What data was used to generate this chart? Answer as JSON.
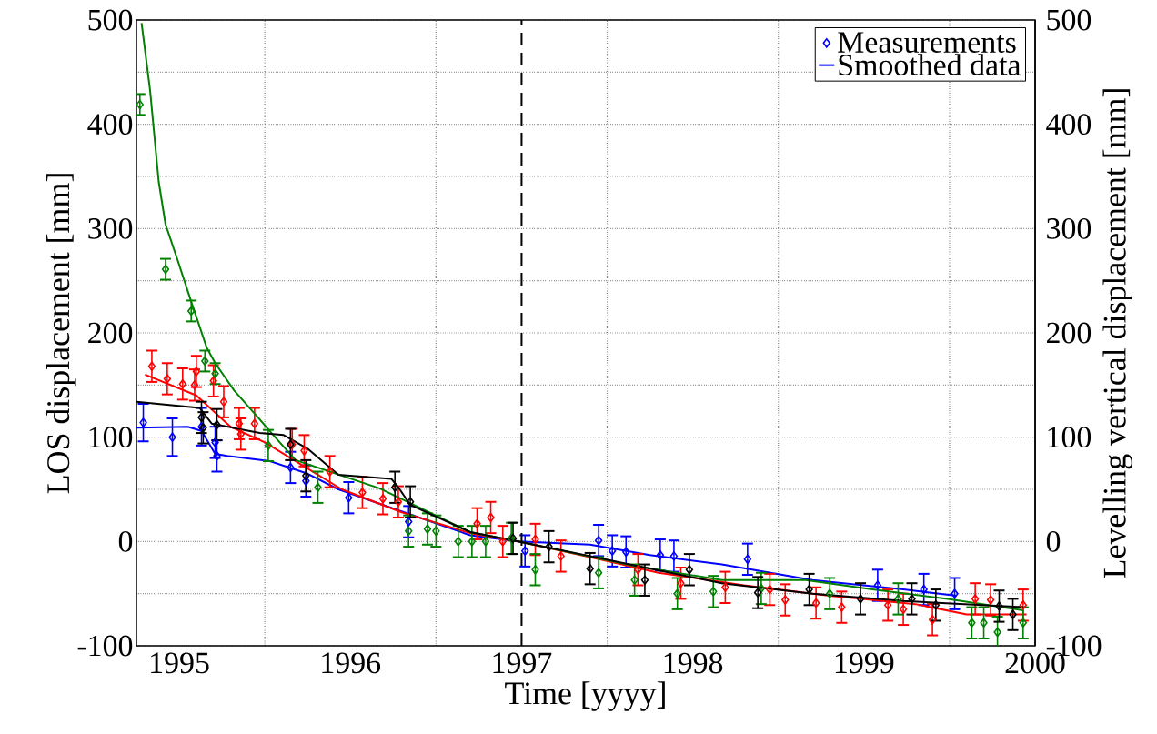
{
  "chart_data": {
    "type": "scatter",
    "xlabel": "Time [yyyy]",
    "ylabel": "LOS displacement [mm]",
    "y2label": "Levelling vertical displacement [mm]",
    "xlim": [
      1995.25,
      2000.5
    ],
    "xticks": [
      {
        "value": 1995.5,
        "label": "1995"
      },
      {
        "value": 1996,
        "label": null
      },
      {
        "value": 1996.5,
        "label": "1996"
      },
      {
        "value": 1997,
        "label": null
      },
      {
        "value": 1997.5,
        "label": "1997"
      },
      {
        "value": 1998,
        "label": null
      },
      {
        "value": 1998.5,
        "label": "1998"
      },
      {
        "value": 1999,
        "label": null
      },
      {
        "value": 1999.5,
        "label": "1999"
      },
      {
        "value": 2000,
        "label": null
      },
      {
        "value": 2000.5,
        "label": "2000"
      }
    ],
    "ylim": [
      -100,
      500
    ],
    "yticks": [
      -100,
      {
        "value": -50,
        "label": null
      },
      0,
      {
        "value": 50,
        "label": null
      },
      100,
      {
        "value": 150,
        "label": null
      },
      200,
      {
        "value": 250,
        "label": null
      },
      300,
      {
        "value": 350,
        "label": null
      },
      400,
      {
        "value": 450,
        "label": null
      },
      500
    ],
    "y2lim": [
      -100,
      500
    ],
    "y2ticks": [
      -100,
      0,
      100,
      200,
      300,
      400,
      500
    ],
    "grid": true,
    "legend": "top right",
    "ref_lines": [
      {
        "axis": "x",
        "value": 1997.5,
        "color": "#000000",
        "line_style": "dashed"
      }
    ],
    "series": [
      {
        "name": "Measurements",
        "marker": "diamond",
        "color": "#0000ff",
        "x": [
          1995.29,
          1995.46,
          1995.63,
          1995.71,
          1995.72,
          1996.15,
          1996.24,
          1996.49,
          1996.84,
          1997.52,
          1997.95,
          1998.03,
          1998.11,
          1998.31,
          1998.39,
          1998.82,
          1999.58,
          1999.85,
          2000.03
        ],
        "values": [
          114,
          100,
          110,
          95,
          82,
          71,
          58,
          42,
          19,
          -9,
          1,
          -9,
          -10,
          -13,
          -14,
          -17,
          -42,
          -46,
          -50
        ],
        "errors": [
          18,
          18,
          18,
          15,
          15,
          15,
          15,
          15,
          15,
          15,
          15,
          15,
          15,
          15,
          15,
          15,
          15,
          15,
          15
        ]
      },
      {
        "name": "Smoothed data",
        "type": "line",
        "color": "#0000ff",
        "x": [
          1995.25,
          1995.55,
          1995.63,
          1995.71,
          1995.78,
          1996.03,
          1996.25,
          1996.43,
          1996.78,
          1997.2,
          1997.48,
          1997.9,
          1998.25,
          1998.67,
          1999.2,
          1999.73,
          2000.04
        ],
        "values": [
          109,
          110,
          106,
          84,
          82,
          77,
          65,
          50,
          30,
          6,
          0,
          -3,
          -13,
          -22,
          -37,
          -46,
          -52
        ]
      },
      {
        "marker": "diamond",
        "color": "#ff0000",
        "x": [
          1995.34,
          1995.43,
          1995.52,
          1995.59,
          1995.6,
          1995.7,
          1995.76,
          1995.85,
          1995.86,
          1995.94,
          1996.16,
          1996.23,
          1996.38,
          1996.57,
          1996.69,
          1996.78,
          1997.24,
          1997.32,
          1997.39,
          1997.58,
          1997.73,
          1998.18,
          1998.43,
          1998.69,
          1998.95,
          1999.04,
          1999.22,
          1999.37,
          1999.64,
          1999.73,
          1999.9,
          2000.15,
          2000.24,
          2000.43
        ],
        "values": [
          168,
          156,
          151,
          150,
          163,
          154,
          134,
          113,
          103,
          113,
          93,
          87,
          67,
          47,
          41,
          38,
          17,
          23,
          0,
          2,
          -14,
          -27,
          -40,
          -44,
          -46,
          -56,
          -59,
          -63,
          -61,
          -65,
          -75,
          -55,
          -56,
          -61
        ],
        "errors": [
          15,
          15,
          15,
          15,
          15,
          15,
          15,
          15,
          15,
          15,
          15,
          15,
          15,
          15,
          15,
          15,
          15,
          15,
          15,
          15,
          15,
          15,
          15,
          15,
          15,
          15,
          15,
          15,
          15,
          15,
          15,
          15,
          15,
          15
        ]
      },
      {
        "type": "line",
        "color": "#ff0000",
        "x": [
          1995.3,
          1995.6,
          1995.8,
          1996.0,
          1996.2,
          1996.45,
          1996.8,
          1997.2,
          1997.48,
          1997.9,
          1998.3,
          1998.8,
          1999.3,
          1999.8,
          2000.1,
          2000.45
        ],
        "values": [
          160,
          140,
          110,
          95,
          75,
          50,
          28,
          8,
          0,
          -15,
          -30,
          -42,
          -52,
          -60,
          -70,
          -70
        ]
      },
      {
        "marker": "diamond",
        "color": "#008000",
        "x": [
          1995.27,
          1995.42,
          1995.57,
          1995.65,
          1995.71,
          1996.02,
          1996.31,
          1996.84,
          1996.95,
          1997.0,
          1997.13,
          1997.21,
          1997.29,
          1997.44,
          1997.58,
          1997.95,
          1998.16,
          1998.41,
          1998.62,
          1998.9,
          1999.3,
          1999.7,
          2000.13,
          2000.2,
          2000.28,
          2000.43
        ],
        "values": [
          419,
          261,
          221,
          173,
          161,
          92,
          52,
          10,
          12,
          10,
          0,
          0,
          0,
          3,
          -27,
          -30,
          -37,
          -50,
          -48,
          -45,
          -50,
          -55,
          -78,
          -78,
          -87,
          -78
        ],
        "errors": [
          10,
          10,
          10,
          10,
          10,
          15,
          15,
          15,
          15,
          15,
          15,
          15,
          15,
          15,
          15,
          15,
          15,
          15,
          15,
          15,
          15,
          15,
          15,
          15,
          15,
          15
        ]
      },
      {
        "type": "line",
        "color": "#008000",
        "x": [
          1995.28,
          1995.33,
          1995.38,
          1995.42,
          1995.49,
          1995.57,
          1995.66,
          1995.71,
          1995.82,
          1995.97,
          1996.06,
          1996.18,
          1996.67,
          1997.2,
          1997.48,
          1998.15,
          1998.67,
          1999.16,
          1999.55,
          1999.99,
          2000.43
        ],
        "values": [
          497,
          432,
          345,
          304,
          270,
          230,
          186,
          171,
          145,
          117,
          100,
          78,
          51,
          9,
          0,
          -23,
          -37,
          -37,
          -46,
          -55,
          -66
        ]
      },
      {
        "marker": "diamond",
        "color": "#000000",
        "x": [
          1995.63,
          1995.64,
          1995.72,
          1996.15,
          1996.24,
          1996.76,
          1996.85,
          1997.45,
          1997.66,
          1997.9,
          1998.22,
          1998.48,
          1998.88,
          1999.18,
          1999.48,
          1999.78,
          1999.92,
          2000.29,
          2000.37
        ],
        "values": [
          119,
          109,
          112,
          93,
          63,
          52,
          38,
          3,
          -5,
          -26,
          -37,
          -27,
          -49,
          -46,
          -55,
          -55,
          -61,
          -62,
          -70
        ],
        "errors": [
          15,
          15,
          15,
          15,
          15,
          15,
          15,
          15,
          15,
          15,
          15,
          15,
          15,
          15,
          15,
          15,
          15,
          15,
          15
        ]
      },
      {
        "type": "line",
        "color": "#000000",
        "x": [
          1995.25,
          1995.62,
          1995.69,
          1995.97,
          1996.11,
          1996.25,
          1996.43,
          1996.74,
          1996.78,
          1996.85,
          1997.2,
          1997.48,
          1997.9,
          1998.22,
          1998.67,
          1999.2,
          1999.73,
          2000.43
        ],
        "values": [
          134,
          128,
          113,
          104,
          102,
          89,
          64,
          60,
          52,
          35,
          9,
          0,
          -14,
          -25,
          -40,
          -50,
          -57,
          -63
        ]
      }
    ]
  }
}
